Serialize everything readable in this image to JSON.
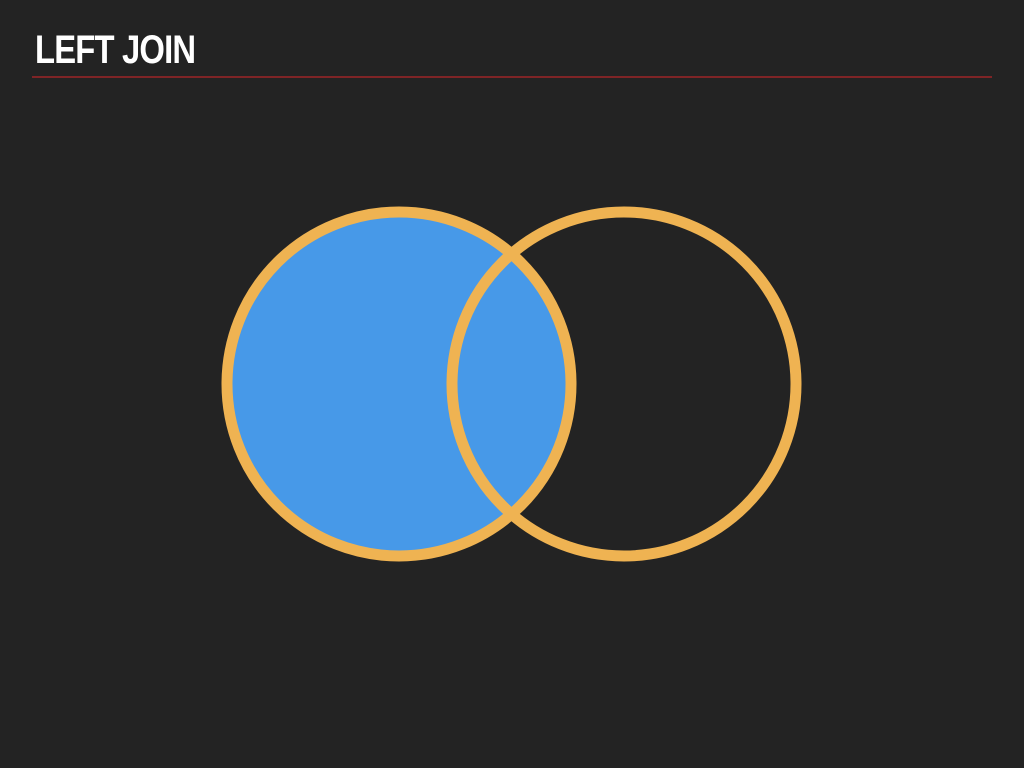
{
  "slide": {
    "title": "LEFT JOIN",
    "rule_color": "#7f2426",
    "background_color": "#232323"
  },
  "venn": {
    "sets": [
      "left",
      "right"
    ],
    "highlighted_region": "left_all",
    "fill_color": "#4799e8",
    "outline_color": "#efb352"
  }
}
